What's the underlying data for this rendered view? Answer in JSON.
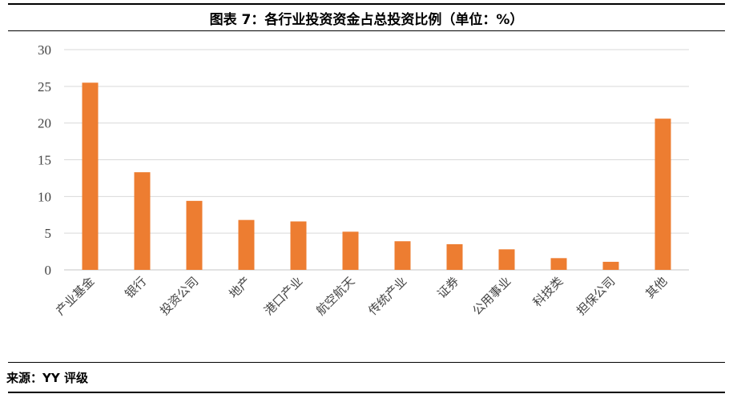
{
  "title": "图表 7：各行业投资资金占总投资比例（单位：%）",
  "source": "来源：YY 评级",
  "chart_data": {
    "type": "bar",
    "title": "图表 7：各行业投资资金占总投资比例（单位：%）",
    "xlabel": "",
    "ylabel": "",
    "ylim": [
      0,
      30
    ],
    "yticks": [
      0,
      5,
      10,
      15,
      20,
      25,
      30
    ],
    "grid": true,
    "bar_color": "#ED7D31",
    "categories": [
      "产业基金",
      "银行",
      "投资公司",
      "地产",
      "港口产业",
      "航空航天",
      "传统产业",
      "证券",
      "公用事业",
      "科技类",
      "担保公司",
      "其他"
    ],
    "values": [
      25.5,
      13.3,
      9.4,
      6.8,
      6.6,
      5.2,
      3.9,
      3.5,
      2.8,
      1.6,
      1.1,
      20.6
    ]
  }
}
